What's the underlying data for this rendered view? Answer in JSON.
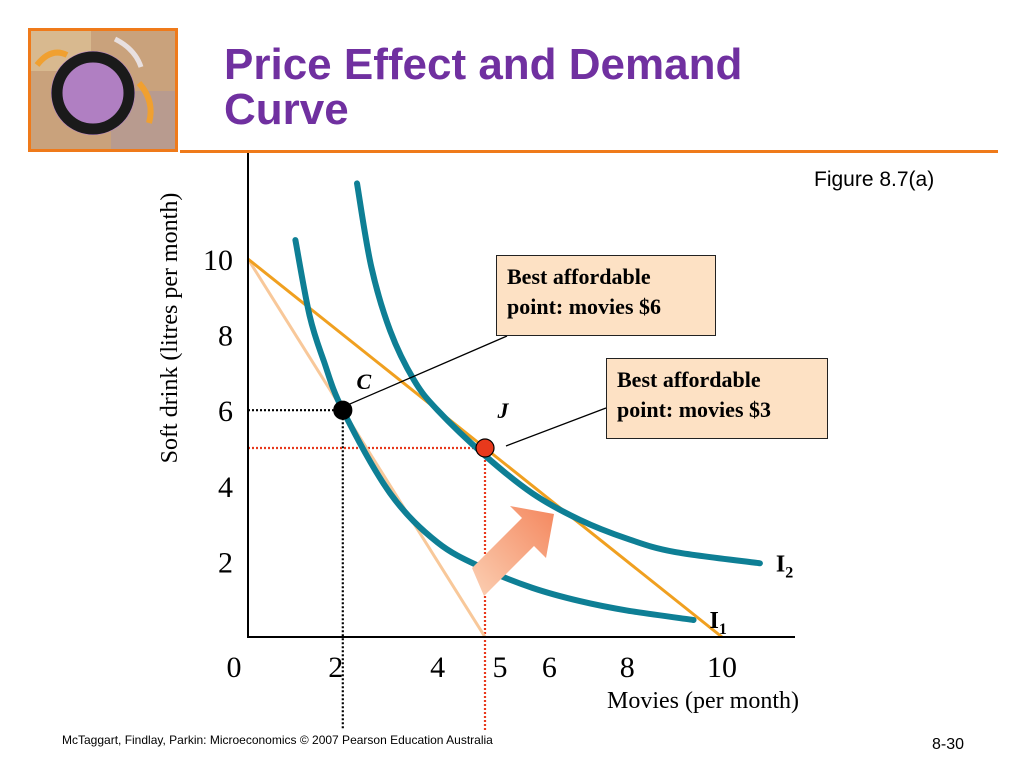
{
  "slide": {
    "title_line1": "Price Effect and Demand",
    "title_line2": "Curve",
    "figure_label": "Figure 8.7(a)",
    "footer_left": "McTaggart, Findlay, Parkin: Microeconomics © 2007 Pearson Education Australia",
    "footer_right": "8-30",
    "colors": {
      "title": "#7030a0",
      "rule": "#ef7a1a",
      "curves": "#0e7f95",
      "budget": "#f0a020",
      "budget_old": "#f8c89a",
      "callout_bg": "#fde1c4",
      "arrow": "#f79f7c"
    }
  },
  "chart_data": {
    "type": "line",
    "xlabel": "Movies (per month)",
    "ylabel": "Soft drink (litres per month)",
    "xlim": [
      0,
      11.5
    ],
    "ylim": [
      0,
      12.5
    ],
    "x_ticks": [
      0,
      2,
      4,
      5,
      6,
      8,
      10
    ],
    "y_ticks": [
      2,
      4,
      6,
      8,
      10
    ],
    "budget_lines": [
      {
        "name": "movies $6",
        "points": [
          [
            0,
            10
          ],
          [
            5,
            0
          ]
        ]
      },
      {
        "name": "movies $3",
        "points": [
          [
            0,
            10
          ],
          [
            10,
            0
          ]
        ]
      }
    ],
    "indifference_curves": [
      {
        "label_main": "I",
        "label_sub": "1",
        "points": [
          [
            1,
            10.5
          ],
          [
            1.3,
            8.5
          ],
          [
            1.6,
            7.3
          ],
          [
            2,
            6
          ],
          [
            3,
            3.8
          ],
          [
            4,
            2.5
          ],
          [
            5,
            1.8
          ],
          [
            6,
            1.3
          ],
          [
            7,
            0.95
          ],
          [
            8,
            0.7
          ],
          [
            9.4,
            0.45
          ]
        ]
      },
      {
        "label_main": "I",
        "label_sub": "2",
        "points": [
          [
            2.3,
            12
          ],
          [
            2.6,
            9.8
          ],
          [
            3,
            8.1
          ],
          [
            3.5,
            6.8
          ],
          [
            4,
            6
          ],
          [
            5,
            4.8
          ],
          [
            6,
            3.8
          ],
          [
            7,
            3.1
          ],
          [
            8,
            2.6
          ],
          [
            9,
            2.25
          ],
          [
            10.8,
            1.95
          ]
        ]
      }
    ],
    "points": [
      {
        "label": "C",
        "x": 2,
        "y": 6,
        "color": "#000000"
      },
      {
        "label": "J",
        "x": 5,
        "y": 5,
        "color": "#e8391c"
      }
    ],
    "callouts": [
      {
        "line1": "Best affordable",
        "line2": "point: movies $6",
        "points_to": "C"
      },
      {
        "line1": "Best affordable",
        "line2": "point: movies $3",
        "points_to": "J"
      }
    ]
  }
}
